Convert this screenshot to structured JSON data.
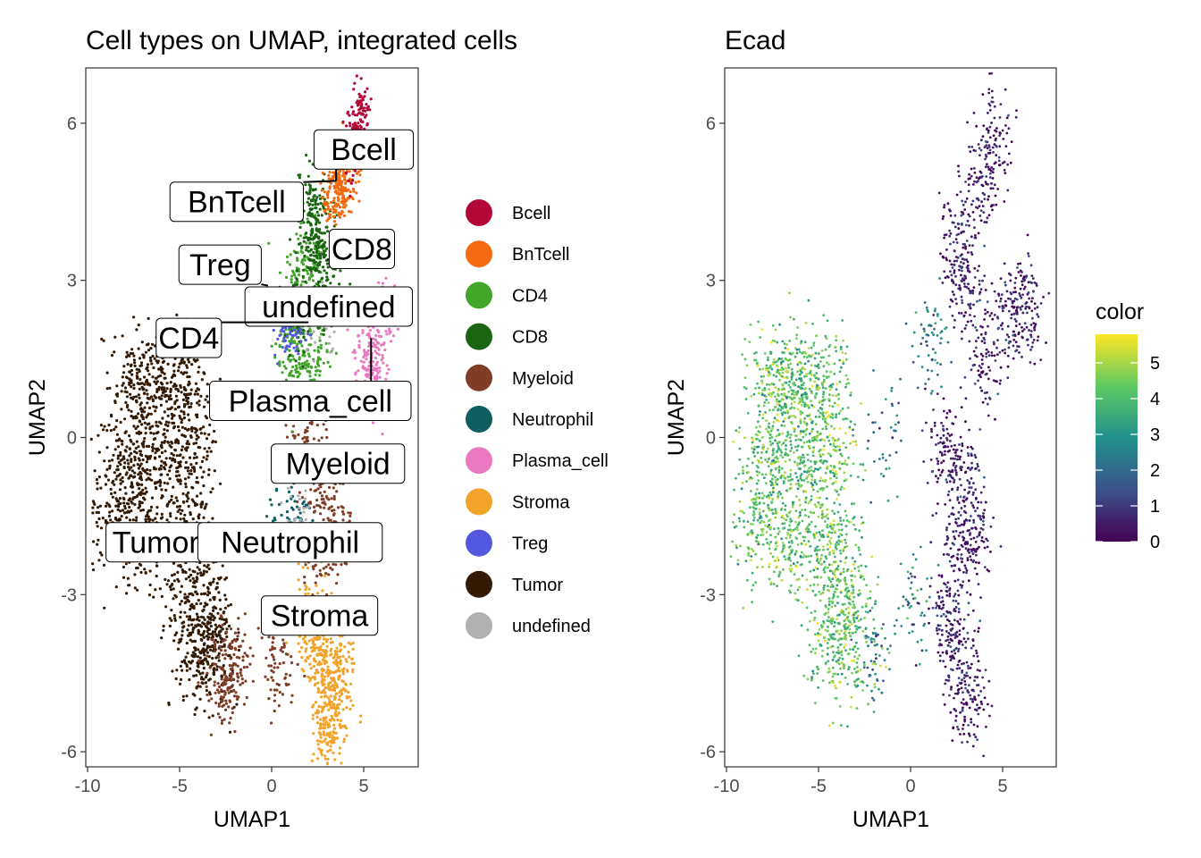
{
  "chart_data": [
    {
      "type": "scatter",
      "title": "Cell types on UMAP, integrated cells",
      "xlabel": "UMAP1",
      "ylabel": "UMAP2",
      "xlim": [
        -10,
        8
      ],
      "ylim": [
        -6.5,
        7
      ],
      "xticks": [
        -10,
        -5,
        0,
        5
      ],
      "yticks": [
        -6,
        -3,
        0,
        3,
        6
      ],
      "xtick_labels": [
        "-10",
        "-5",
        "0",
        "5"
      ],
      "ytick_labels": [
        "-6",
        "-3",
        "0",
        "3",
        "6"
      ],
      "grid": false,
      "legend_position": "right",
      "legend": [
        {
          "name": "Bcell",
          "color": "#B30737"
        },
        {
          "name": "BnTcell",
          "color": "#F26B10"
        },
        {
          "name": "CD4",
          "color": "#41A62A"
        },
        {
          "name": "CD8",
          "color": "#1A6412"
        },
        {
          "name": "Myeloid",
          "color": "#7F3D26"
        },
        {
          "name": "Neutrophil",
          "color": "#0E5D5F"
        },
        {
          "name": "Plasma_cell",
          "color": "#EB79C2"
        },
        {
          "name": "Stroma",
          "color": "#F1A32A"
        },
        {
          "name": "Treg",
          "color": "#5457DF"
        },
        {
          "name": "Tumor",
          "color": "#331A05"
        },
        {
          "name": "undefined",
          "color": "#B0B0B0"
        }
      ],
      "annotations": [
        {
          "text": "Bcell",
          "x": 5.0,
          "y": 5.5,
          "point_x": 3.5,
          "point_y": 4.9
        },
        {
          "text": "BnTcell",
          "x": -1.9,
          "y": 4.5,
          "point_x": 3.5,
          "point_y": 4.9
        },
        {
          "text": "CD8",
          "x": 4.9,
          "y": 3.6,
          "point_x": 3.0,
          "point_y": 3.4
        },
        {
          "text": "Treg",
          "x": -2.8,
          "y": 3.3,
          "point_x": -0.2,
          "point_y": 2.9
        },
        {
          "text": "undefined",
          "x": 3.1,
          "y": 2.5,
          "point_x": 3.0,
          "point_y": 2.5
        },
        {
          "text": "CD4",
          "x": -4.5,
          "y": 1.9,
          "point_x": 2.0,
          "point_y": 2.2
        },
        {
          "text": "Plasma_cell",
          "x": 2.1,
          "y": 0.7,
          "point_x": 5.4,
          "point_y": 1.9
        },
        {
          "text": "Myeloid",
          "x": 3.6,
          "y": -0.5,
          "point_x": 2.0,
          "point_y": -0.6
        },
        {
          "text": "Tumor",
          "x": -6.3,
          "y": -2.0,
          "point_x": -6.0,
          "point_y": -2.0
        },
        {
          "text": "Neutrophil",
          "x": 1.0,
          "y": -2.0,
          "point_x": 1.0,
          "point_y": -2.0
        },
        {
          "text": "Stroma",
          "x": 2.6,
          "y": -3.4,
          "point_x": 2.4,
          "point_y": -3.4
        }
      ]
    },
    {
      "type": "scatter",
      "title": "Ecad",
      "xlabel": "UMAP1",
      "ylabel": "UMAP2",
      "xlim": [
        -10,
        8
      ],
      "ylim": [
        -6.5,
        7
      ],
      "xticks": [
        -10,
        -5,
        0,
        5
      ],
      "yticks": [
        -6,
        -3,
        0,
        3,
        6
      ],
      "xtick_labels": [
        "-10",
        "-5",
        "0",
        "5"
      ],
      "ytick_labels": [
        "-6",
        "-3",
        "0",
        "3",
        "6"
      ],
      "grid": false,
      "legend_position": "right",
      "colorbar": {
        "title": "color",
        "min": 0,
        "max": 5.8,
        "ticks": [
          0,
          1,
          2,
          3,
          4,
          5
        ],
        "tick_labels": [
          "0",
          "1",
          "2",
          "3",
          "4",
          "5"
        ],
        "palette": "viridis",
        "stops": [
          "#440154",
          "#3B528B",
          "#21918C",
          "#5EC962",
          "#FDE725"
        ]
      }
    }
  ]
}
